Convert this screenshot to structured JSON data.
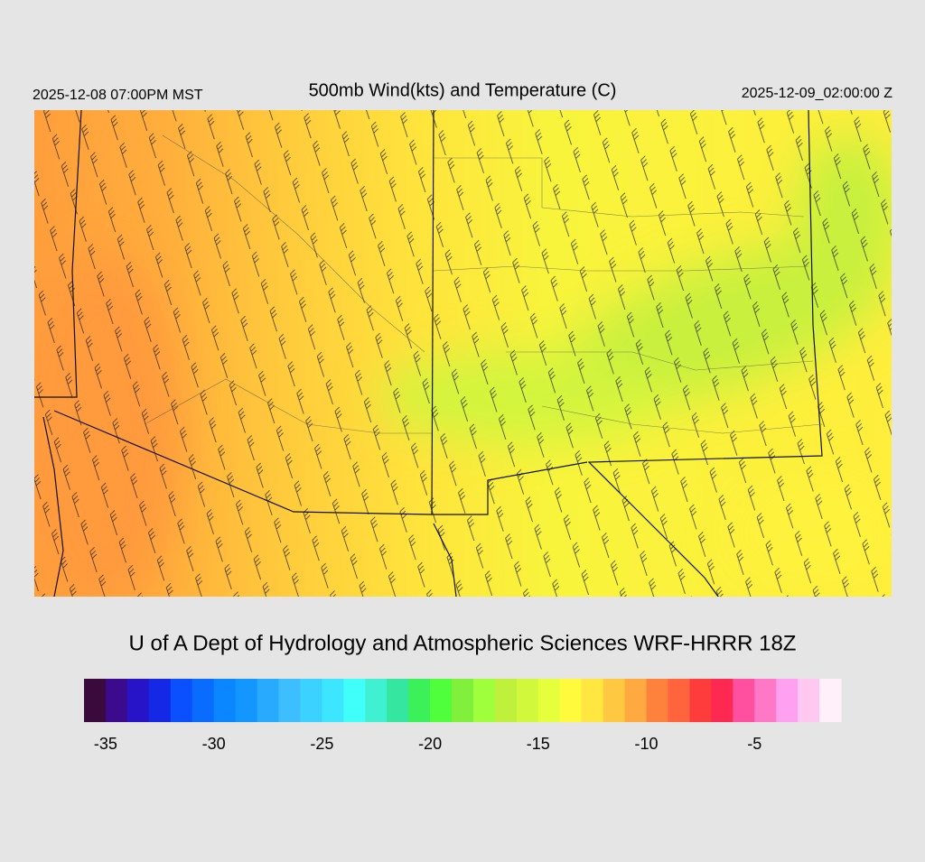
{
  "header": {
    "left": "2025-12-08 07:00PM MST",
    "title": "500mb Wind(kts) and Temperature (C)",
    "right": "2025-12-09_02:00:00 Z"
  },
  "credit": "U of A Dept of Hydrology and Atmospheric Sciences WRF-HRRR 18Z",
  "colorbar": {
    "colors": [
      "#3a0a3c",
      "#3c0a8c",
      "#2814c8",
      "#1428e6",
      "#0a50ff",
      "#0a6cff",
      "#0a86ff",
      "#1496ff",
      "#28aaff",
      "#3cbeff",
      "#3cd2ff",
      "#3ce6ff",
      "#40fffa",
      "#40f0d2",
      "#34e6a0",
      "#3cf05a",
      "#50ff3c",
      "#80f03c",
      "#a0ff3c",
      "#bef03c",
      "#d2f83c",
      "#e6ff3c",
      "#fffa3c",
      "#ffe640",
      "#ffc840",
      "#ffaa40",
      "#ff823c",
      "#ff643c",
      "#ff3c3c",
      "#ff2850",
      "#ff50a0",
      "#ff78c8",
      "#ffa0f0",
      "#ffc8f0",
      "#fff0fa"
    ],
    "xlim": [
      -36,
      -1
    ],
    "xticks": [
      -35,
      -30,
      -25,
      -20,
      -15,
      -10,
      -5
    ]
  }
}
